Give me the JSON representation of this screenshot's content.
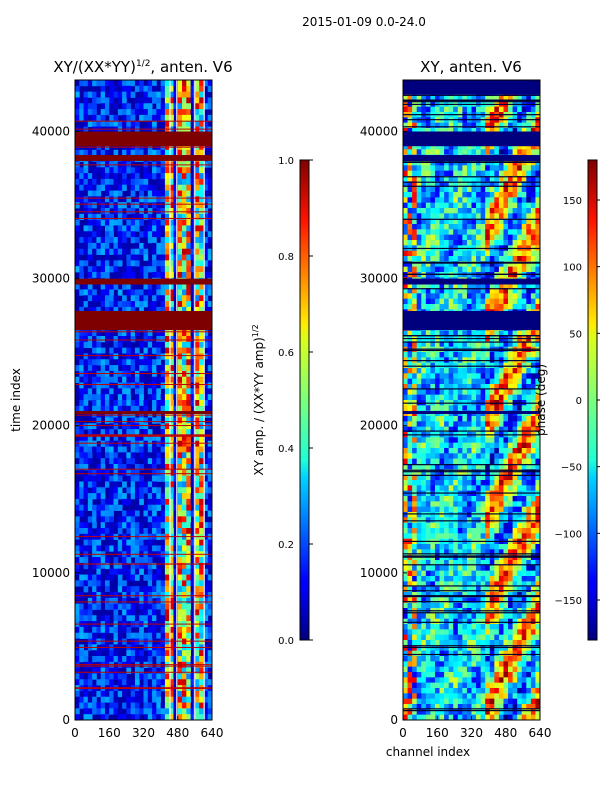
{
  "figure": {
    "suptitle": "2015-01-09 0.0-24.0"
  },
  "chart_data": [
    {
      "type": "heatmap",
      "title_main": "XY/(XX*YY)",
      "title_sup": "1/2",
      "title_rest": ", anten. V6",
      "xlabel": "",
      "ylabel": "time index",
      "xlim": [
        0,
        640
      ],
      "ylim": [
        0,
        43500
      ],
      "xticks": [
        0,
        160,
        320,
        480,
        640
      ],
      "yticks": [
        0,
        10000,
        20000,
        30000,
        40000
      ],
      "colormap": "jet",
      "colorbar": {
        "label_main": "XY amp. / (XX*YY amp)",
        "label_sup": "1/2",
        "range": [
          0.0,
          1.0
        ],
        "ticks": [
          0.0,
          0.2,
          0.4,
          0.6,
          0.8,
          1.0
        ],
        "tick_labels": [
          "0.0",
          "0.2",
          "0.4",
          "0.6",
          "0.8",
          "1.0"
        ]
      },
      "saturated_time_bands": [
        [
          26500,
          27800
        ],
        [
          29600,
          30000
        ],
        [
          38000,
          38400
        ],
        [
          39000,
          40000
        ],
        [
          20800,
          21000
        ]
      ]
    },
    {
      "type": "heatmap",
      "title_main": "XY, anten. V6",
      "xlabel": "channel index",
      "ylabel": "",
      "xlim": [
        0,
        640
      ],
      "ylim": [
        0,
        43500
      ],
      "xticks": [
        0,
        160,
        320,
        480,
        640
      ],
      "yticks": [
        0,
        10000,
        20000,
        30000,
        40000
      ],
      "colormap": "jet",
      "colorbar": {
        "label_main": "phase (deg)",
        "range": [
          -180,
          180
        ],
        "ticks": [
          -150,
          -100,
          -50,
          0,
          50,
          100,
          150
        ],
        "tick_labels": [
          "−150",
          "−100",
          "−50",
          "0",
          "50",
          "100",
          "150"
        ]
      },
      "masked_time_bands": [
        [
          26500,
          27800
        ],
        [
          29600,
          30000
        ],
        [
          38000,
          38400
        ],
        [
          39000,
          40000
        ],
        [
          20800,
          21000
        ],
        [
          42500,
          43500
        ]
      ]
    }
  ]
}
